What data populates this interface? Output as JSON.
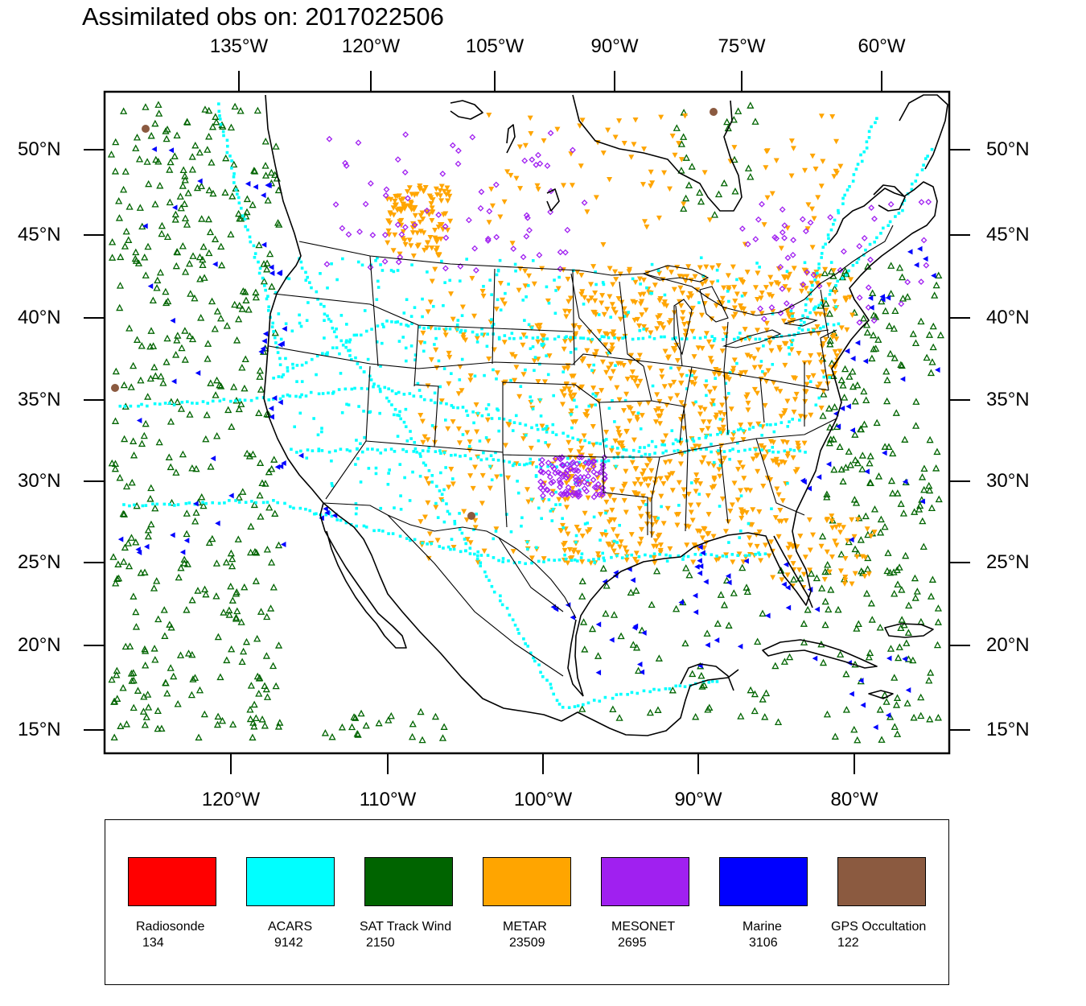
{
  "title": "Assimilated obs on: 2017022506",
  "axes": {
    "top_lon_labels": [
      "135°W",
      "120°W",
      "105°W",
      "90°W",
      "75°W",
      "60°W"
    ],
    "bottom_lon_labels": [
      "120°W",
      "110°W",
      "100°W",
      "90°W",
      "80°W"
    ],
    "lat_labels": [
      "50°N",
      "45°N",
      "40°N",
      "35°N",
      "30°N",
      "25°N",
      "20°N",
      "15°N"
    ]
  },
  "legend": [
    {
      "name": "Radiosonde",
      "count": "134",
      "color": "#ff0000",
      "marker": "none"
    },
    {
      "name": "ACARS",
      "count": "9142",
      "color": "#00ffff",
      "marker": "square"
    },
    {
      "name": "SAT Track Wind",
      "count": "2150",
      "color": "#006400",
      "marker": "triangle-up-outline"
    },
    {
      "name": "METAR",
      "count": "23509",
      "color": "#ffa500",
      "marker": "triangle-down"
    },
    {
      "name": "MESONET",
      "count": "2695",
      "color": "#a020f0",
      "marker": "diamond"
    },
    {
      "name": "Marine",
      "count": "3106",
      "color": "#0000ff",
      "marker": "triangle-left"
    },
    {
      "name": "GPS Occultation",
      "count": "122",
      "color": "#8b5a40",
      "marker": "circle"
    }
  ]
}
